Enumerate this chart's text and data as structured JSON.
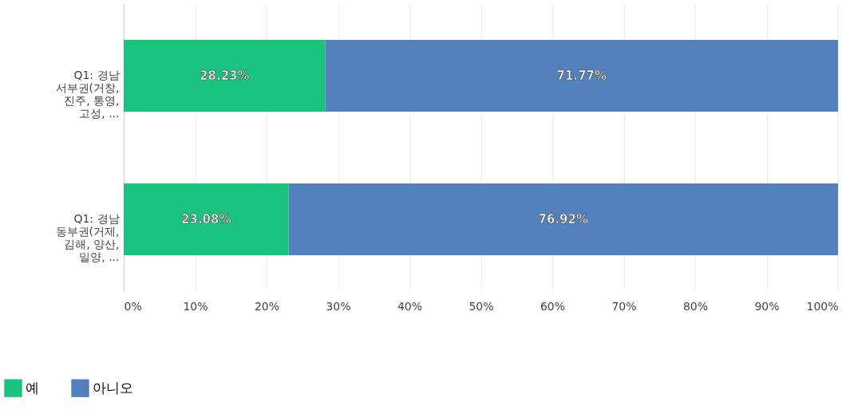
{
  "chart_data": {
    "type": "bar",
    "orientation": "horizontal",
    "stacked": true,
    "categories": [
      "Q1: 경남 서부권(거창, 진주, 통영, 고성, ...",
      "Q1: 경남 동부권(거제, 김해, 양산, 밀양, ..."
    ],
    "series": [
      {
        "name": "예",
        "color": "#19c37d",
        "values": [
          28.23,
          23.08
        ],
        "value_labels": [
          "28.23%",
          "23.08%"
        ]
      },
      {
        "name": "아니오",
        "color": "#5381bd",
        "values": [
          71.77,
          76.92
        ],
        "value_labels": [
          "71.77%",
          "76.92%"
        ]
      }
    ],
    "xlim": [
      0,
      100
    ],
    "xticks": [
      {
        "value": 0,
        "label": "0%"
      },
      {
        "value": 10,
        "label": "10%"
      },
      {
        "value": 20,
        "label": "20%"
      },
      {
        "value": 30,
        "label": "30%"
      },
      {
        "value": 40,
        "label": "40%"
      },
      {
        "value": 50,
        "label": "50%"
      },
      {
        "value": 60,
        "label": "60%"
      },
      {
        "value": 70,
        "label": "70%"
      },
      {
        "value": 80,
        "label": "80%"
      },
      {
        "value": 90,
        "label": "90%"
      },
      {
        "value": 100,
        "label": "100%"
      }
    ],
    "grid": "x",
    "legend": "bottom left"
  }
}
